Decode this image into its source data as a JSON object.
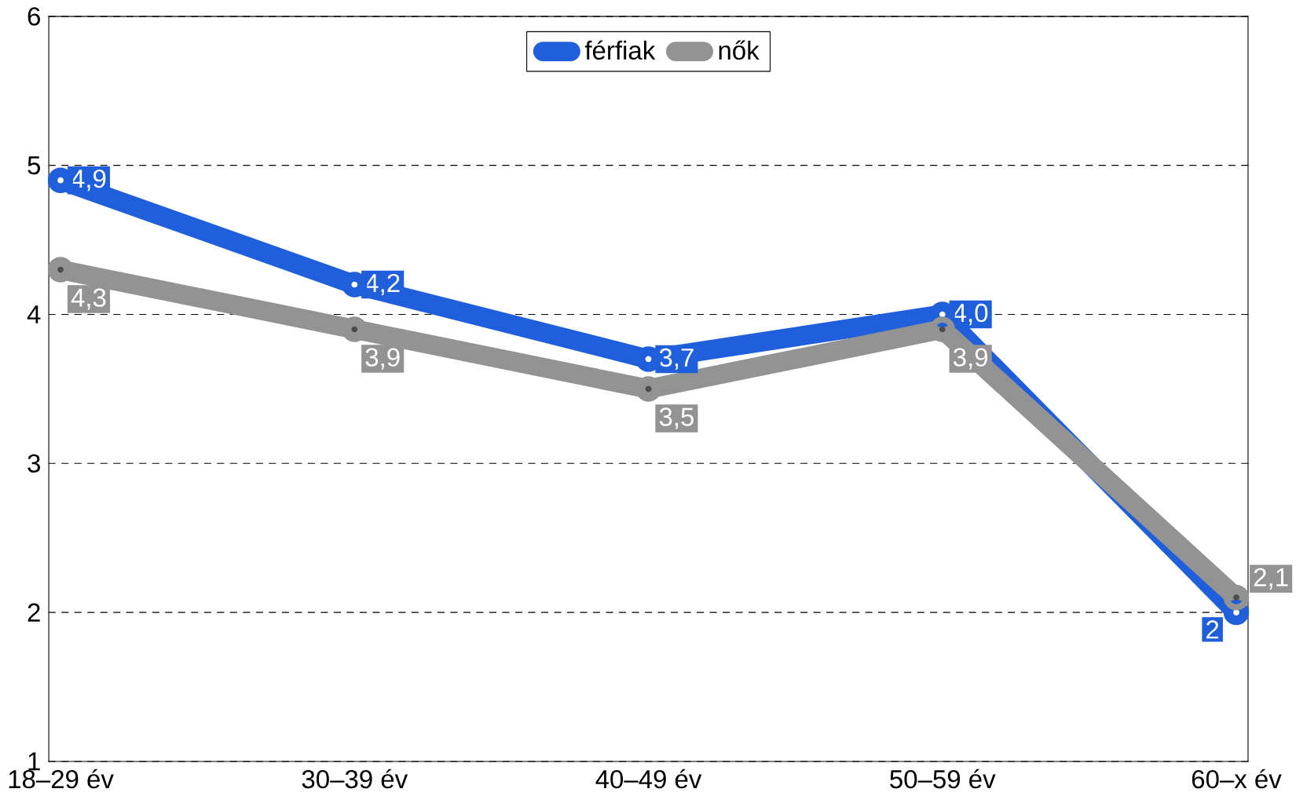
{
  "chart_data": {
    "type": "line",
    "categories": [
      "18–29 év",
      "30–39 év",
      "40–49 év",
      "50–59 év",
      "60–x év"
    ],
    "series": [
      {
        "name": "férfiak",
        "color": "#1f5fdc",
        "values": [
          4.9,
          4.2,
          3.7,
          4.0,
          2
        ],
        "value_labels": [
          "4,9",
          "4,2",
          "3,7",
          "4,0",
          "2"
        ]
      },
      {
        "name": "nők",
        "color": "#939393",
        "values": [
          4.3,
          3.9,
          3.5,
          3.9,
          2.1
        ],
        "value_labels": [
          "4,3",
          "3,9",
          "3,5",
          "3,9",
          "2,1"
        ]
      }
    ],
    "ylim": [
      1,
      6
    ],
    "yticks": [
      1,
      2,
      3,
      4,
      5,
      6
    ],
    "grid": "y",
    "legend": "top",
    "marker": "circle",
    "line_style": "solid"
  }
}
